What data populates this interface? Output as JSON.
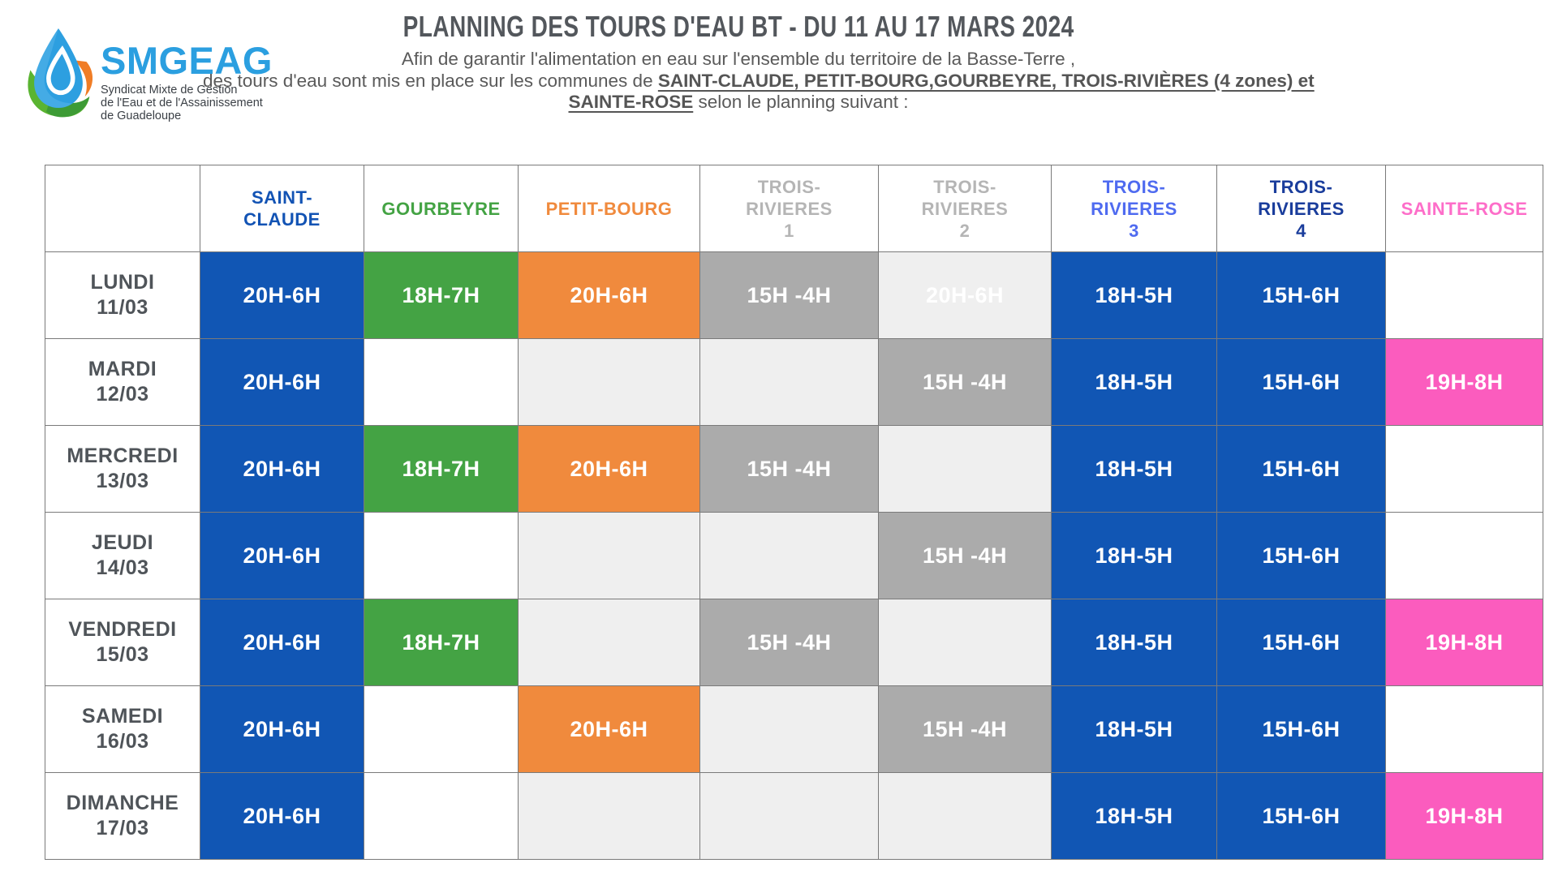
{
  "logo": {
    "name": "SMGEAG",
    "tagline_lines": [
      "Syndicat Mixte de Gestion",
      "de l'Eau et de l'Assainissement",
      "de Guadeloupe"
    ]
  },
  "header": {
    "title": "PLANNING DES TOURS D'EAU BT - DU 11 AU 17 MARS 2024",
    "intro_line1": "Afin de garantir l'alimentation en eau sur l'ensemble du territoire de la Basse-Terre ,",
    "intro_line2_normal": "des tours d'eau sont mis en place sur les communes de ",
    "intro_line2_bold": "SAINT-CLAUDE, PETIT-BOURG,GOURBEYRE, TROIS-RIVIÈRES (4 zones) et",
    "intro_line3_bold": "SAINTE-ROSE",
    "intro_line3_normal": " selon le planning suivant :"
  },
  "colors": {
    "brand_blue": "#2b9fe0",
    "title_gray": "#53575c",
    "grid_line": "#7a7a7a",
    "cell_bg": {
      "blue": "#1156b4",
      "green": "#44a344",
      "orange": "#f08a3d",
      "gray": "#ababab",
      "lightgray": "#efefef",
      "white": "#ffffff",
      "pink": "#fb5cbe"
    },
    "header_text": {
      "saint_claude": "#1253b4",
      "gourbeyre": "#44a344",
      "petit_bourg": "#f08a3d",
      "trois_rivieres_1_2": "#b5b5b5",
      "trois_rivieres_3": "#4f6bf0",
      "trois_rivieres_4": "#1a3d9c",
      "sainte_rose": "#fd6ec9"
    }
  },
  "table": {
    "corner": "",
    "columns": [
      {
        "id": "saint-claude",
        "lines": [
          "SAINT-",
          "CLAUDE"
        ],
        "color": "#1253b4"
      },
      {
        "id": "gourbeyre",
        "lines": [
          "GOURBEYRE"
        ],
        "color": "#44a344"
      },
      {
        "id": "petit-bourg",
        "lines": [
          "PETIT-BOURG"
        ],
        "color": "#f08a3d"
      },
      {
        "id": "trois-rivieres-1",
        "lines": [
          "TROIS-",
          "RIVIERES",
          "1"
        ],
        "color": "#b5b5b5"
      },
      {
        "id": "trois-rivieres-2",
        "lines": [
          "TROIS-",
          "RIVIERES",
          "2"
        ],
        "color": "#b5b5b5"
      },
      {
        "id": "trois-rivieres-3",
        "lines": [
          "TROIS-",
          "RIVIERES",
          "3"
        ],
        "color": "#4f6bf0"
      },
      {
        "id": "trois-rivieres-4",
        "lines": [
          "TROIS-",
          "RIVIERES",
          "4"
        ],
        "color": "#1a3d9c"
      },
      {
        "id": "sainte-rose",
        "lines": [
          "SAINTE-ROSE"
        ],
        "color": "#fd6ec9"
      }
    ],
    "rows": [
      {
        "day": "LUNDI",
        "date": "11/03",
        "cells": [
          {
            "t": "20H-6H",
            "bg": "blue"
          },
          {
            "t": "18H-7H",
            "bg": "green"
          },
          {
            "t": "20H-6H",
            "bg": "orange"
          },
          {
            "t": "15H -4H",
            "bg": "gray"
          },
          {
            "t": "20H-6H",
            "bg": "lightgray"
          },
          {
            "t": "18H-5H",
            "bg": "blue"
          },
          {
            "t": "15H-6H",
            "bg": "blue"
          },
          {
            "t": "",
            "bg": "white"
          }
        ]
      },
      {
        "day": "MARDI",
        "date": "12/03",
        "cells": [
          {
            "t": "20H-6H",
            "bg": "blue"
          },
          {
            "t": "",
            "bg": "white"
          },
          {
            "t": "",
            "bg": "lightgray"
          },
          {
            "t": "",
            "bg": "lightgray"
          },
          {
            "t": "15H -4H",
            "bg": "gray"
          },
          {
            "t": "18H-5H",
            "bg": "blue"
          },
          {
            "t": "15H-6H",
            "bg": "blue"
          },
          {
            "t": "19H-8H",
            "bg": "pink"
          }
        ]
      },
      {
        "day": "MERCREDI",
        "date": "13/03",
        "cells": [
          {
            "t": "20H-6H",
            "bg": "blue"
          },
          {
            "t": "18H-7H",
            "bg": "green"
          },
          {
            "t": "20H-6H",
            "bg": "orange"
          },
          {
            "t": "15H -4H",
            "bg": "gray"
          },
          {
            "t": "",
            "bg": "lightgray"
          },
          {
            "t": "18H-5H",
            "bg": "blue"
          },
          {
            "t": "15H-6H",
            "bg": "blue"
          },
          {
            "t": "",
            "bg": "white"
          }
        ]
      },
      {
        "day": "JEUDI",
        "date": "14/03",
        "cells": [
          {
            "t": "20H-6H",
            "bg": "blue"
          },
          {
            "t": "",
            "bg": "white"
          },
          {
            "t": "",
            "bg": "lightgray"
          },
          {
            "t": "",
            "bg": "lightgray"
          },
          {
            "t": "15H -4H",
            "bg": "gray"
          },
          {
            "t": "18H-5H",
            "bg": "blue"
          },
          {
            "t": "15H-6H",
            "bg": "blue"
          },
          {
            "t": "",
            "bg": "white"
          }
        ]
      },
      {
        "day": "VENDREDI",
        "date": "15/03",
        "cells": [
          {
            "t": "20H-6H",
            "bg": "blue"
          },
          {
            "t": "18H-7H",
            "bg": "green"
          },
          {
            "t": "",
            "bg": "lightgray"
          },
          {
            "t": "15H -4H",
            "bg": "gray"
          },
          {
            "t": "",
            "bg": "lightgray"
          },
          {
            "t": "18H-5H",
            "bg": "blue"
          },
          {
            "t": "15H-6H",
            "bg": "blue"
          },
          {
            "t": "19H-8H",
            "bg": "pink"
          }
        ]
      },
      {
        "day": "SAMEDI",
        "date": "16/03",
        "cells": [
          {
            "t": "20H-6H",
            "bg": "blue"
          },
          {
            "t": "",
            "bg": "white"
          },
          {
            "t": "20H-6H",
            "bg": "orange"
          },
          {
            "t": "",
            "bg": "lightgray"
          },
          {
            "t": "15H -4H",
            "bg": "gray"
          },
          {
            "t": "18H-5H",
            "bg": "blue"
          },
          {
            "t": "15H-6H",
            "bg": "blue"
          },
          {
            "t": "",
            "bg": "white"
          }
        ]
      },
      {
        "day": "DIMANCHE",
        "date": "17/03",
        "cells": [
          {
            "t": "20H-6H",
            "bg": "blue"
          },
          {
            "t": "",
            "bg": "white"
          },
          {
            "t": "",
            "bg": "lightgray"
          },
          {
            "t": "",
            "bg": "lightgray"
          },
          {
            "t": "",
            "bg": "lightgray"
          },
          {
            "t": "18H-5H",
            "bg": "blue"
          },
          {
            "t": "15H-6H",
            "bg": "blue"
          },
          {
            "t": "19H-8H",
            "bg": "pink"
          }
        ]
      }
    ]
  }
}
